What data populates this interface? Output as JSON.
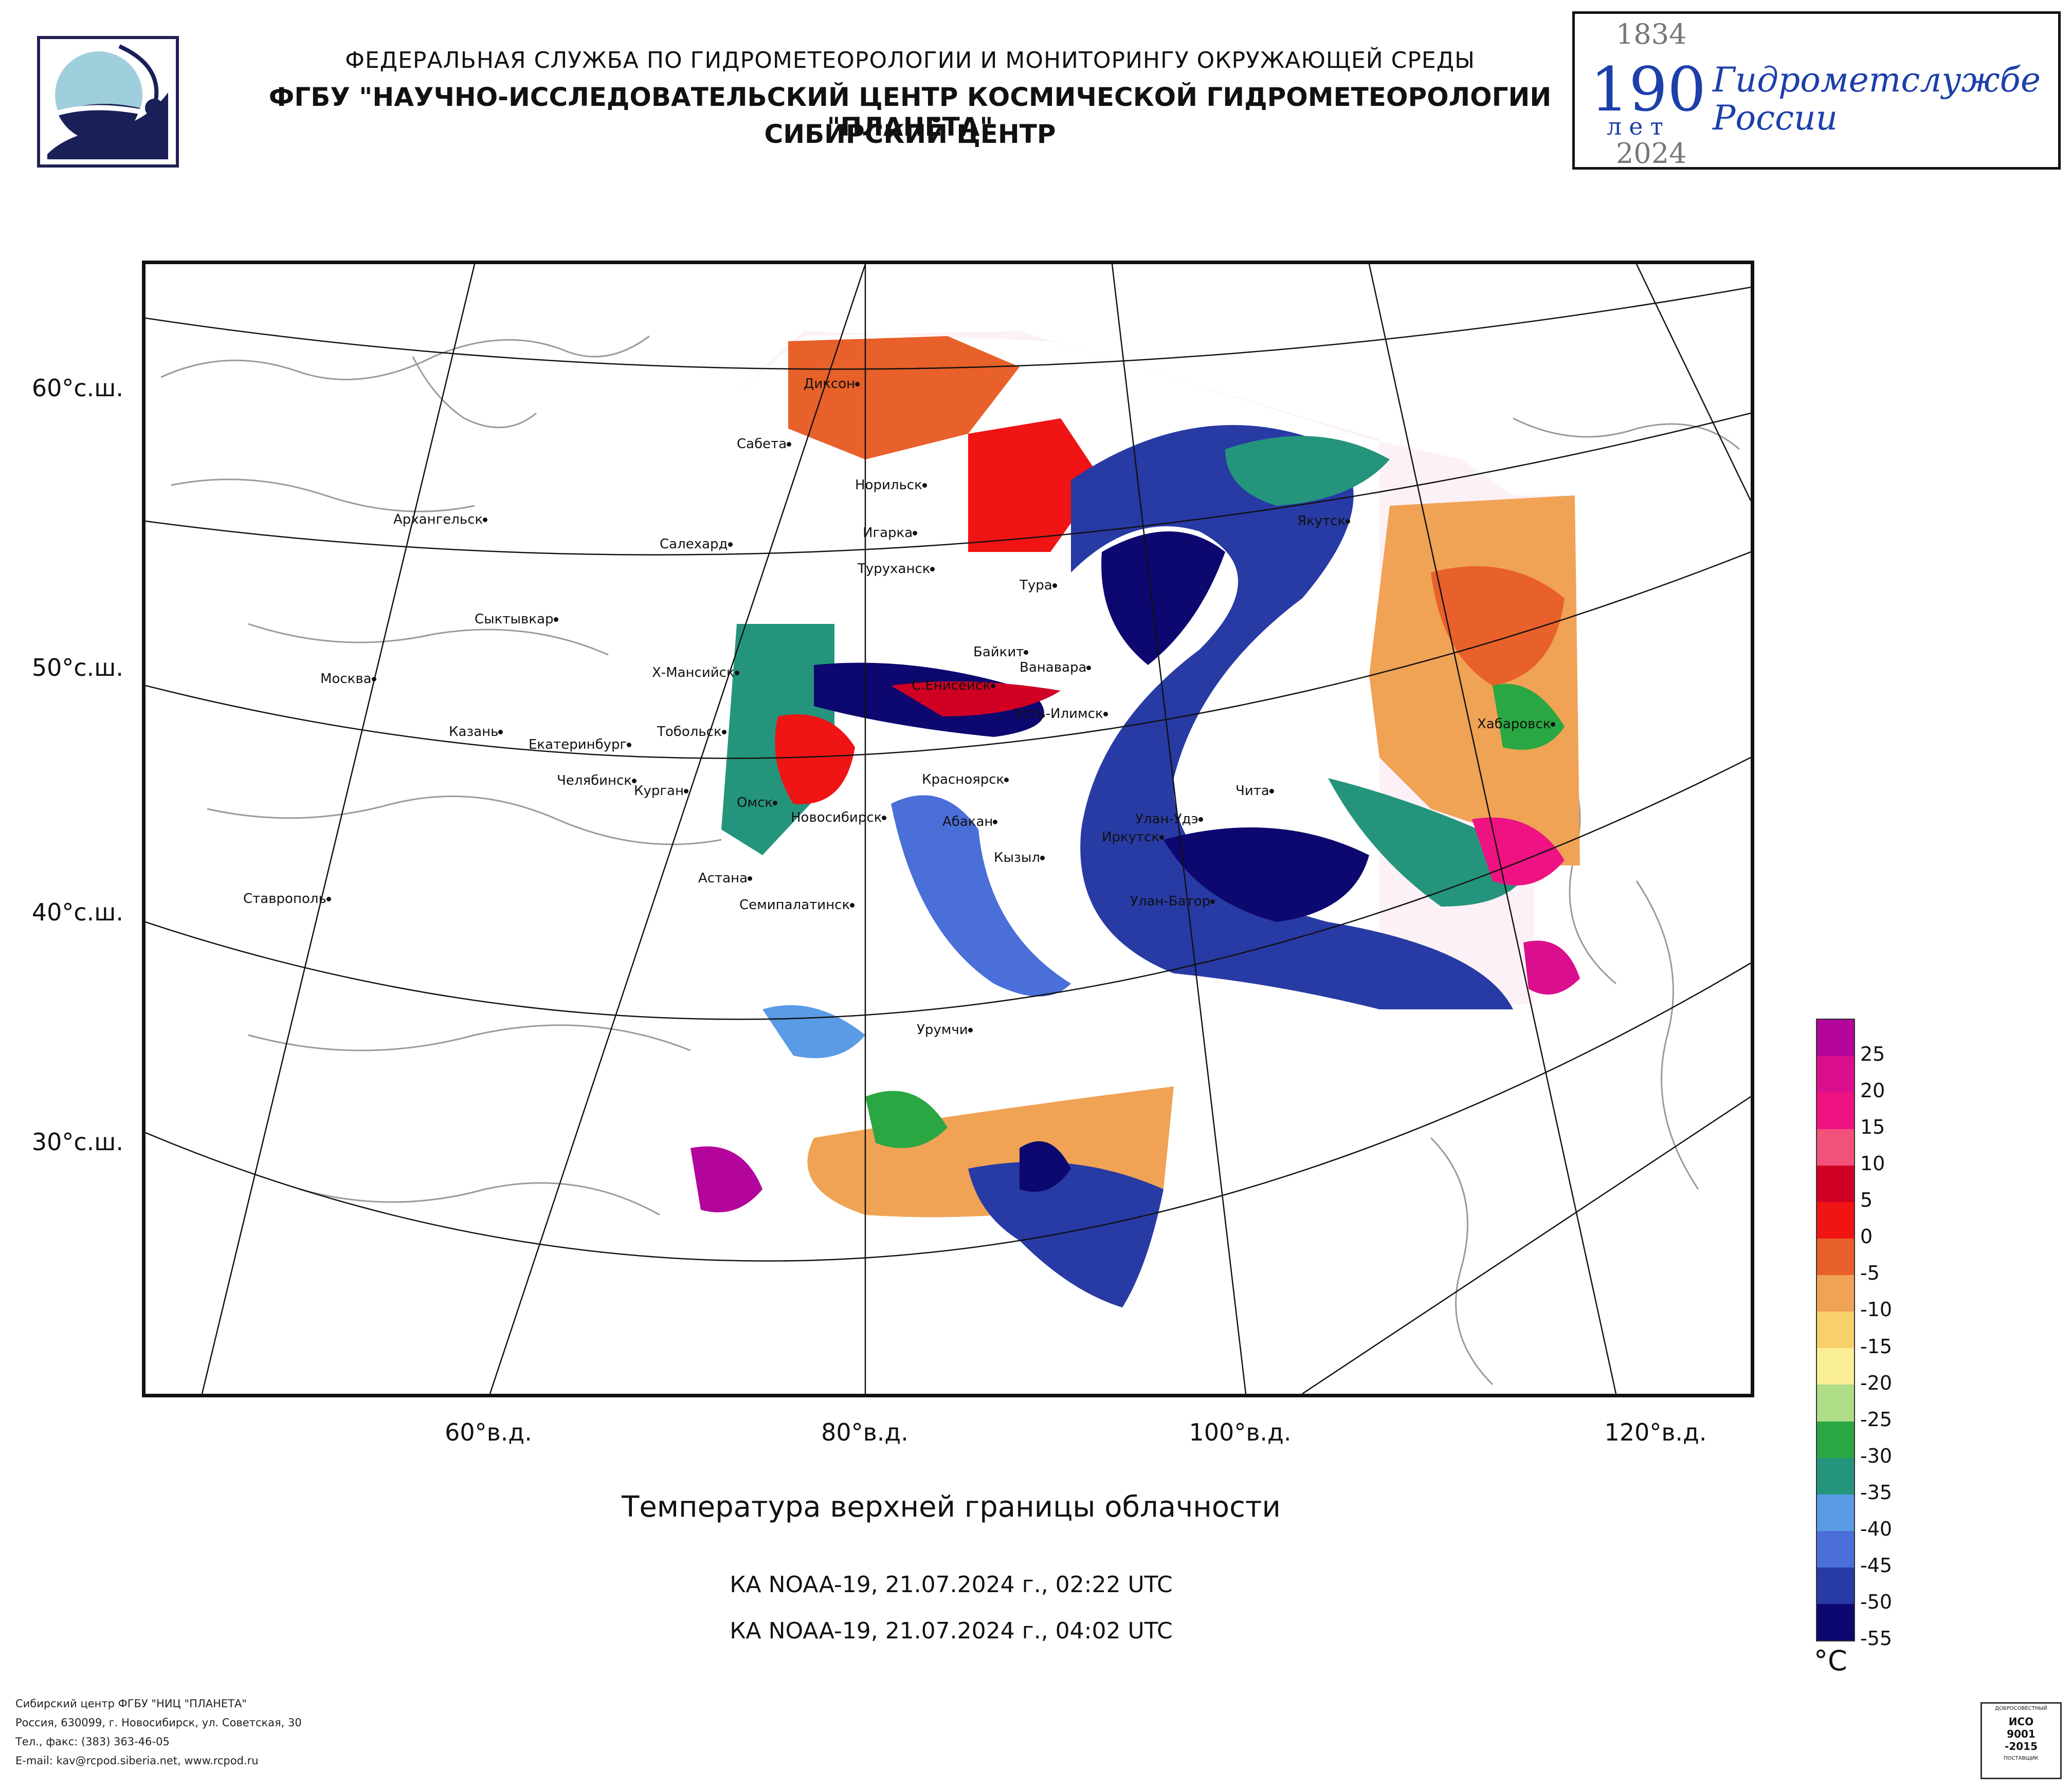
{
  "header": {
    "line1": "ФЕДЕРАЛЬНАЯ СЛУЖБА ПО ГИДРОМЕТЕОРОЛОГИИ И МОНИТОРИНГУ ОКРУЖАЮЩЕЙ СРЕДЫ",
    "line2": "ФГБУ \"НАУЧНО-ИССЛЕДОВАТЕЛЬСКИЙ ЦЕНТР КОСМИЧЕСКОЙ ГИДРОМЕТЕОРОЛОГИИ \"ПЛАНЕТА\"",
    "line3": "СИБИРСКИЙ ЦЕНТР"
  },
  "anniversary": {
    "year_start": "1834",
    "number": "190",
    "years_word": "лет",
    "text_line1": "Гидрометслужбе",
    "text_line2": "России",
    "year_end": "2024",
    "color": "#1c3faa"
  },
  "map": {
    "lat_labels": [
      "60°с.ш.",
      "50°с.ш.",
      "40°с.ш.",
      "30°с.ш."
    ],
    "lon_labels": [
      "60°в.д.",
      "80°в.д.",
      "100°в.д.",
      "120°в.д."
    ],
    "cities": [
      {
        "name": "Диксон"
      },
      {
        "name": "Сабета"
      },
      {
        "name": "Норильск"
      },
      {
        "name": "Игарка"
      },
      {
        "name": "Туруханск"
      },
      {
        "name": "Салехард"
      },
      {
        "name": "Архангельск"
      },
      {
        "name": "Сыктывкар"
      },
      {
        "name": "Москва"
      },
      {
        "name": "Казань"
      },
      {
        "name": "Екатеринбург"
      },
      {
        "name": "Челябинск"
      },
      {
        "name": "Курган"
      },
      {
        "name": "Тобольск"
      },
      {
        "name": "Х-Мансийск"
      },
      {
        "name": "Омск"
      },
      {
        "name": "Новосибирск"
      },
      {
        "name": "Астана"
      },
      {
        "name": "Семипалатинск"
      },
      {
        "name": "Ставрополь"
      },
      {
        "name": "Тура"
      },
      {
        "name": "Байкит"
      },
      {
        "name": "Ванавара"
      },
      {
        "name": "С.Енисейск"
      },
      {
        "name": "Усть-Илимск"
      },
      {
        "name": "Красноярск"
      },
      {
        "name": "Абакан"
      },
      {
        "name": "Кызыл"
      },
      {
        "name": "Иркутск"
      },
      {
        "name": "Улан-Удэ"
      },
      {
        "name": "Чита"
      },
      {
        "name": "Улан-Батор"
      },
      {
        "name": "Урумчи"
      },
      {
        "name": "Якутск"
      },
      {
        "name": "Хабаровск"
      }
    ]
  },
  "legend": {
    "unit": "°C",
    "colors": [
      "#b3059b",
      "#db0e8e",
      "#ee1282",
      "#f2517a",
      "#cf0024",
      "#f01414",
      "#e8602a",
      "#f0a255",
      "#f8d06a",
      "#fbef96",
      "#afdc86",
      "#2aa742",
      "#24957c",
      "#5a9be6",
      "#4a6fd8",
      "#283aa4",
      "#0d086f"
    ],
    "ticks": [
      "25",
      "20",
      "15",
      "10",
      "5",
      "0",
      "-5",
      "-10",
      "-15",
      "-20",
      "-25",
      "-30",
      "-35",
      "-40",
      "-45",
      "-50",
      "-55"
    ]
  },
  "title": "Температура верхней границы облачности",
  "passes": [
    "КА NOAA-19, 21.07.2024 г., 02:22 UTC",
    "КА NOAA-19, 21.07.2024 г., 04:02 UTC"
  ],
  "footer": {
    "org": "Сибирский центр ФГБУ \"НИЦ \"ПЛАНЕТА\"",
    "address": "Россия, 630099, г. Новосибирск, ул. Советская, 30",
    "phone": "Тел., факс: (383) 363-46-05",
    "email": "E-mail: kav@rcpod.siberia.net, www.rcpod.ru"
  },
  "iso_badge": {
    "top": "ДОБРОСОВЕСТНЫЙ",
    "standard1": "ИСО",
    "standard2": "9001",
    "standard3": "-2015",
    "bottom": "ПОСТАВЩИК"
  }
}
